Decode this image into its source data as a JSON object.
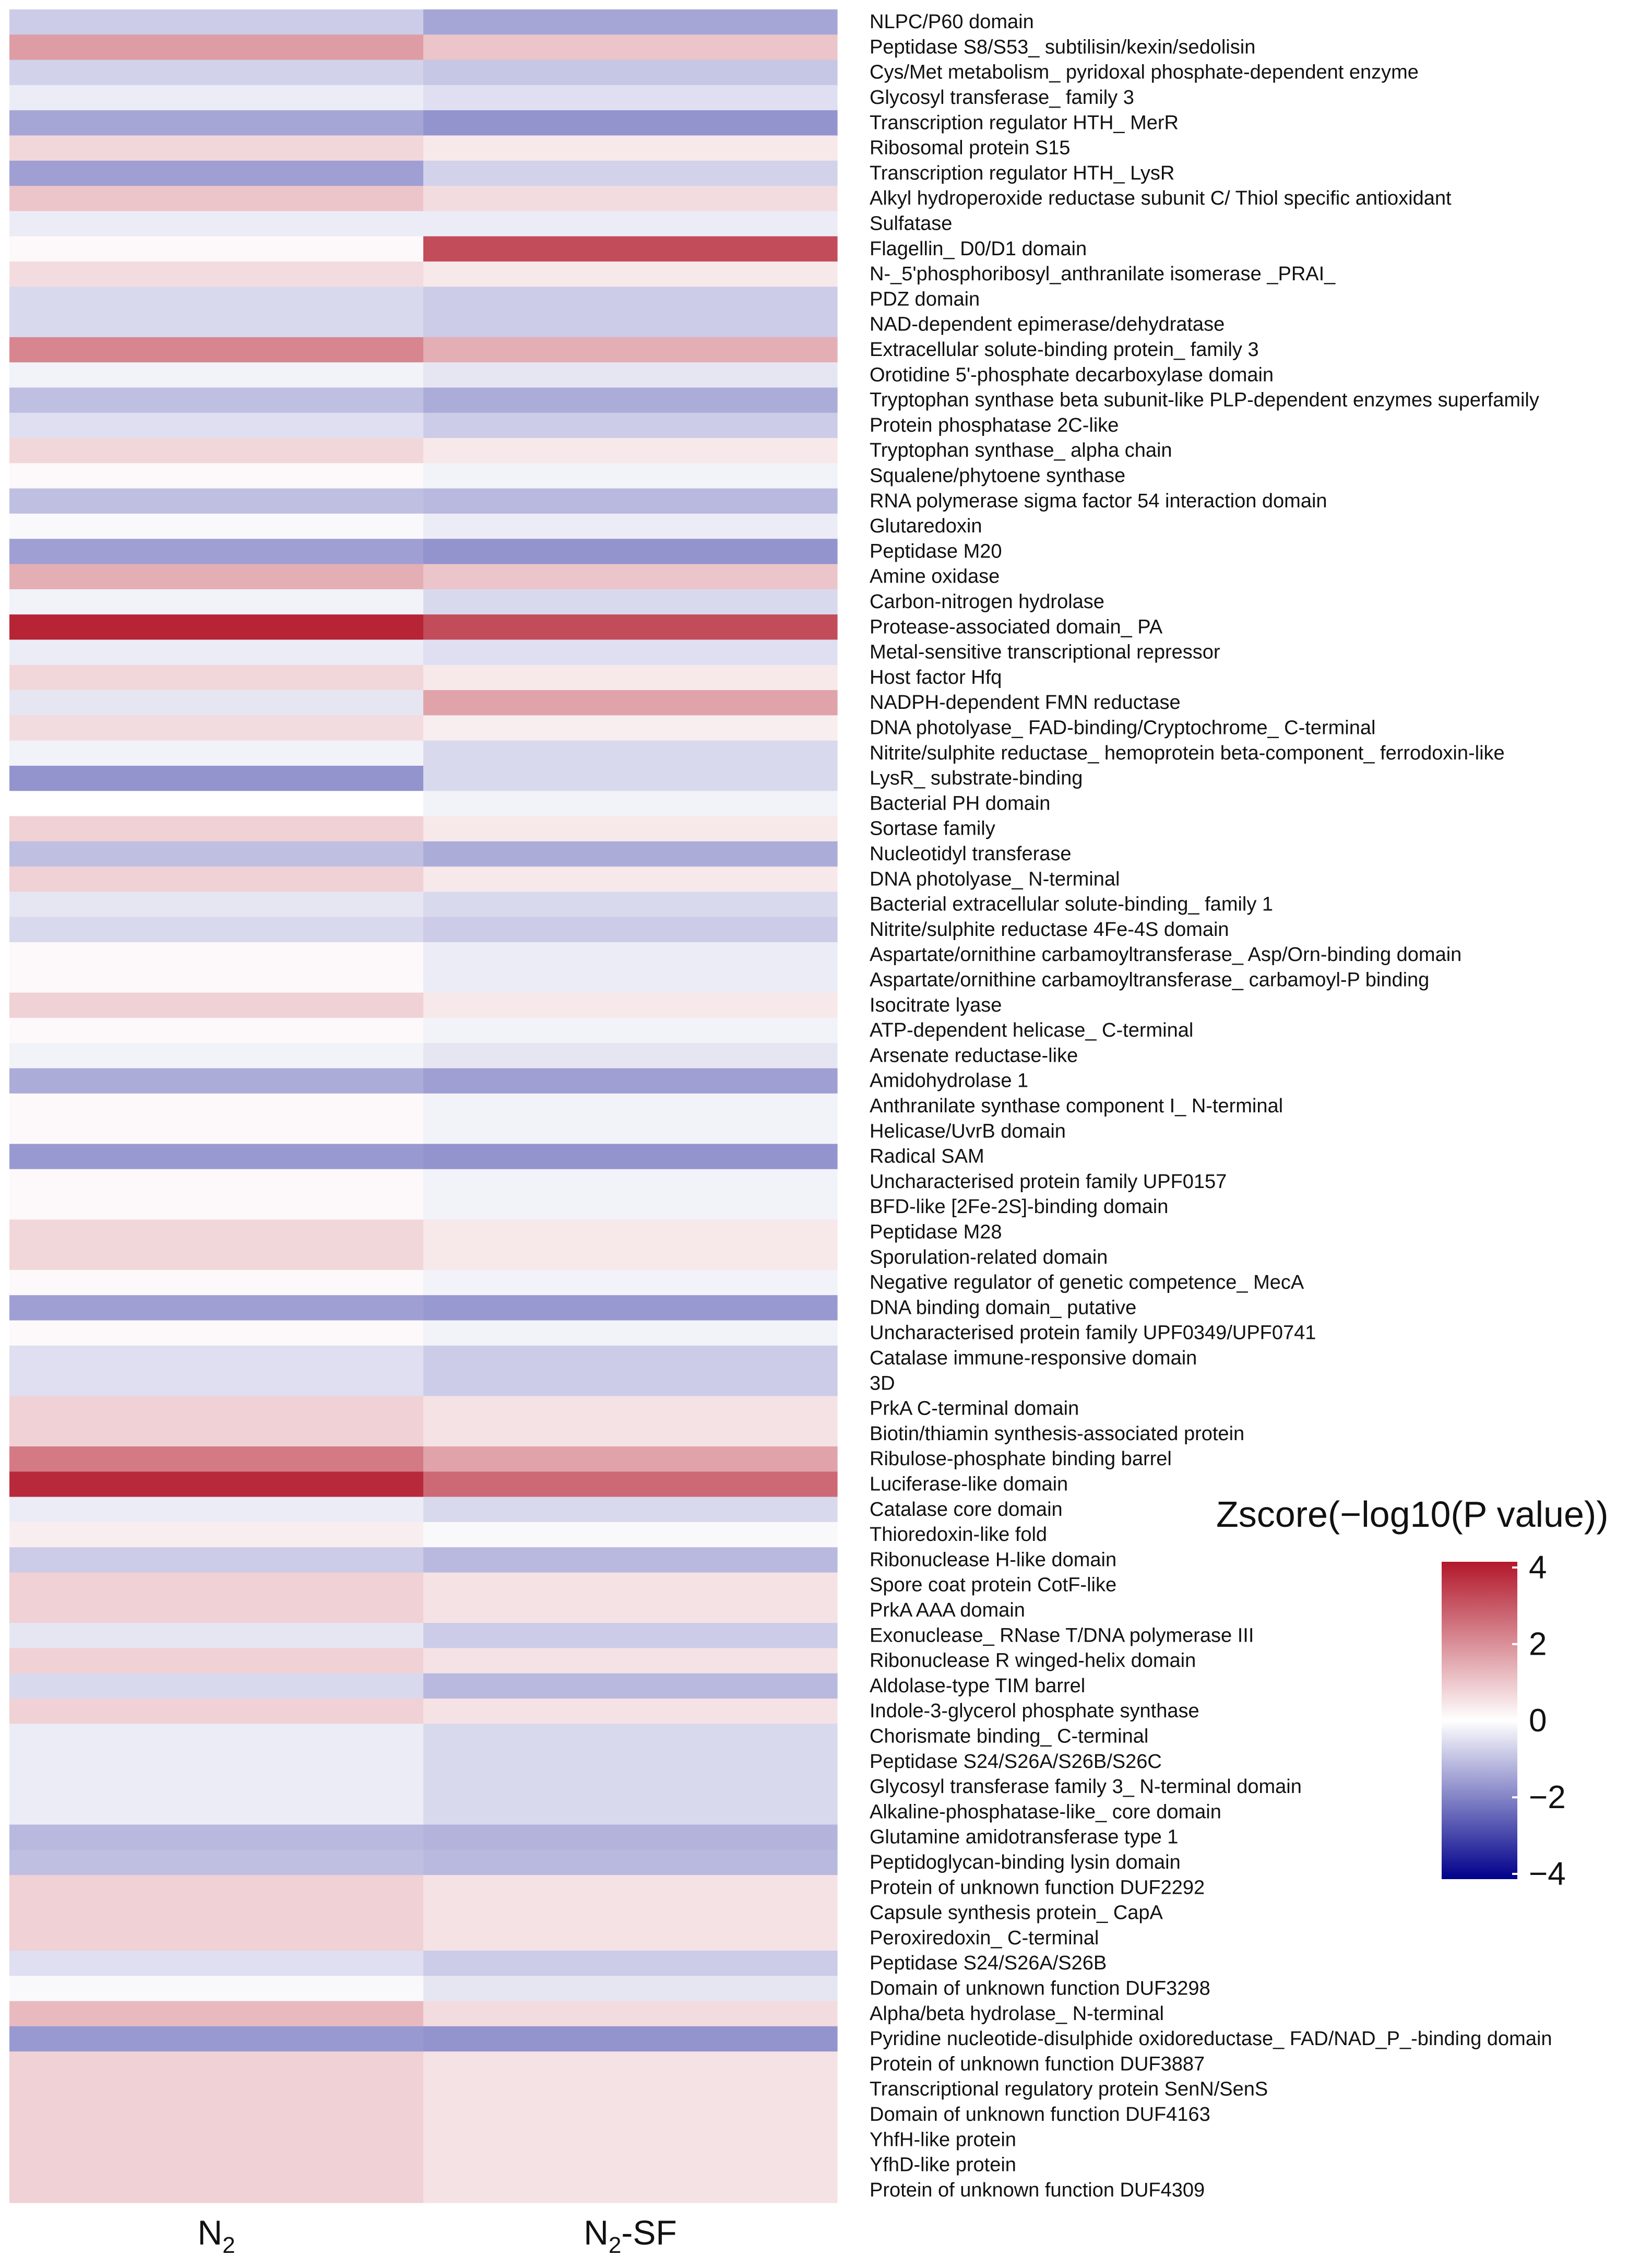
{
  "chart_data": {
    "type": "heatmap",
    "title": "",
    "columns": [
      {
        "label": "N",
        "subscript": "2",
        "suffix": ""
      },
      {
        "label": "N",
        "subscript": "2",
        "suffix": "-SF"
      }
    ],
    "rows": [
      "NLPC/P60 domain",
      "Peptidase S8/S53_ subtilisin/kexin/sedolisin",
      "Cys/Met metabolism_ pyridoxal phosphate-dependent enzyme",
      "Glycosyl transferase_ family 3",
      "Transcription regulator HTH_ MerR",
      "Ribosomal protein S15",
      "Transcription regulator HTH_ LysR",
      "Alkyl hydroperoxide reductase subunit C/ Thiol specific antioxidant",
      "Sulfatase",
      "Flagellin_ D0/D1 domain",
      "N-_5'phosphoribosyl_anthranilate isomerase _PRAI_",
      "PDZ domain",
      "NAD-dependent epimerase/dehydratase",
      "Extracellular solute-binding protein_ family 3",
      "Orotidine 5'-phosphate decarboxylase domain",
      "Tryptophan synthase beta subunit-like PLP-dependent enzymes superfamily",
      "Protein phosphatase 2C-like",
      "Tryptophan synthase_ alpha chain",
      "Squalene/phytoene synthase",
      "RNA polymerase sigma factor 54 interaction domain",
      "Glutaredoxin",
      "Peptidase M20",
      "Amine oxidase",
      "Carbon-nitrogen hydrolase",
      "Protease-associated domain_ PA",
      "Metal-sensitive transcriptional repressor",
      "Host factor Hfq",
      "NADPH-dependent FMN reductase",
      "DNA photolyase_ FAD-binding/Cryptochrome_ C-terminal",
      "Nitrite/sulphite reductase_ hemoprotein beta-component_ ferrodoxin-like",
      "LysR_ substrate-binding",
      "Bacterial PH domain",
      "Sortase family",
      "Nucleotidyl transferase",
      "DNA photolyase_ N-terminal",
      "Bacterial extracellular solute-binding_ family 1",
      "Nitrite/sulphite reductase 4Fe-4S domain",
      "Aspartate/ornithine carbamoyltransferase_ Asp/Orn-binding domain",
      "Aspartate/ornithine carbamoyltransferase_ carbamoyl-P binding",
      "Isocitrate lyase",
      "ATP-dependent helicase_ C-terminal",
      "Arsenate reductase-like",
      "Amidohydrolase 1",
      "Anthranilate synthase component I_ N-terminal",
      "Helicase/UvrB domain",
      "Radical SAM",
      "Uncharacterised protein family UPF0157",
      "BFD-like [2Fe-2S]-binding domain",
      "Peptidase M28",
      "Sporulation-related domain",
      "Negative regulator of genetic competence_ MecA",
      "DNA binding domain_ putative",
      "Uncharacterised protein family UPF0349/UPF0741",
      "Catalase immune-responsive domain",
      "3D",
      "PrkA C-terminal domain",
      "Biotin/thiamin synthesis-associated protein",
      "Ribulose-phosphate binding barrel",
      "Luciferase-like domain",
      "Catalase core domain",
      "Thioredoxin-like fold",
      "Ribonuclease H-like domain",
      "Spore coat protein CotF-like",
      "PrkA AAA domain",
      "Exonuclease_ RNase T/DNA polymerase III",
      "Ribonuclease R winged-helix domain",
      "Aldolase-type TIM barrel",
      "Indole-3-glycerol phosphate synthase",
      "Chorismate binding_ C-terminal",
      "Peptidase S24/S26A/S26B/S26C",
      "Glycosyl transferase family 3_ N-terminal domain",
      "Alkaline-phosphatase-like_ core domain",
      "Glutamine amidotransferase type 1",
      "Peptidoglycan-binding lysin domain",
      "Protein of unknown function DUF2292",
      "Capsule synthesis protein_ CapA",
      "Peroxiredoxin_ C-terminal",
      "Peptidase S24/S26A/S26B",
      "Domain of unknown function DUF3298",
      "Alpha/beta hydrolase_ N-terminal",
      "Pyridine nucleotide-disulphide oxidoreductase_ FAD/NAD_P_-binding domain",
      "Protein of unknown function DUF3887",
      "Transcriptional regulatory protein SenN/SenS",
      "Domain of unknown function DUF4163",
      "YhfH-like protein",
      "YfhD-like protein",
      "Protein of unknown function DUF4309"
    ],
    "values": [
      [
        -0.8,
        -1.4
      ],
      [
        1.7,
        1.0
      ],
      [
        -0.7,
        -0.9
      ],
      [
        -0.3,
        -0.5
      ],
      [
        -1.4,
        -1.7
      ],
      [
        0.7,
        0.4
      ],
      [
        -1.5,
        -0.7
      ],
      [
        1.0,
        0.6
      ],
      [
        -0.3,
        -0.3
      ],
      [
        0.1,
        3.1
      ],
      [
        0.6,
        0.4
      ],
      [
        -0.6,
        -0.8
      ],
      [
        -0.6,
        -0.8
      ],
      [
        2.1,
        1.4
      ],
      [
        -0.2,
        -0.4
      ],
      [
        -1.0,
        -1.3
      ],
      [
        -0.5,
        -0.8
      ],
      [
        0.7,
        0.4
      ],
      [
        0.1,
        -0.2
      ],
      [
        -1.0,
        -1.1
      ],
      [
        -0.1,
        -0.3
      ],
      [
        -1.5,
        -1.7
      ],
      [
        1.4,
        1.0
      ],
      [
        -0.2,
        -0.6
      ],
      [
        3.8,
        3.1
      ],
      [
        -0.3,
        -0.5
      ],
      [
        0.7,
        0.4
      ],
      [
        -0.4,
        1.6
      ],
      [
        0.6,
        0.3
      ],
      [
        -0.2,
        -0.6
      ],
      [
        -1.7,
        -0.6
      ],
      [
        0.0,
        -0.2
      ],
      [
        0.8,
        0.4
      ],
      [
        -1.0,
        -1.3
      ],
      [
        0.8,
        0.4
      ],
      [
        -0.4,
        -0.6
      ],
      [
        -0.6,
        -0.8
      ],
      [
        0.1,
        -0.3
      ],
      [
        0.1,
        -0.3
      ],
      [
        0.8,
        0.4
      ],
      [
        0.1,
        -0.2
      ],
      [
        -0.2,
        -0.4
      ],
      [
        -1.3,
        -1.5
      ],
      [
        0.1,
        -0.2
      ],
      [
        0.1,
        -0.2
      ],
      [
        -1.6,
        -1.7
      ],
      [
        0.1,
        -0.2
      ],
      [
        0.1,
        -0.2
      ],
      [
        0.7,
        0.4
      ],
      [
        0.7,
        0.4
      ],
      [
        0.1,
        -0.2
      ],
      [
        -1.5,
        -1.6
      ],
      [
        0.1,
        -0.2
      ],
      [
        -0.5,
        -0.8
      ],
      [
        -0.5,
        -0.8
      ],
      [
        0.8,
        0.5
      ],
      [
        0.8,
        0.5
      ],
      [
        2.3,
        1.6
      ],
      [
        3.7,
        2.6
      ],
      [
        -0.3,
        -0.6
      ],
      [
        0.3,
        -0.1
      ],
      [
        -0.8,
        -1.1
      ],
      [
        0.8,
        0.5
      ],
      [
        0.8,
        0.5
      ],
      [
        -0.4,
        -0.8
      ],
      [
        0.8,
        0.5
      ],
      [
        -0.6,
        -1.1
      ],
      [
        0.8,
        0.5
      ],
      [
        -0.3,
        -0.6
      ],
      [
        -0.3,
        -0.6
      ],
      [
        -0.3,
        -0.6
      ],
      [
        -0.3,
        -0.6
      ],
      [
        -1.1,
        -1.2
      ],
      [
        -1.0,
        -1.1
      ],
      [
        0.8,
        0.5
      ],
      [
        0.8,
        0.5
      ],
      [
        0.8,
        0.5
      ],
      [
        -0.5,
        -0.8
      ],
      [
        -0.1,
        -0.4
      ],
      [
        1.2,
        0.6
      ],
      [
        -1.6,
        -1.7
      ],
      [
        0.8,
        0.5
      ],
      [
        0.8,
        0.5
      ],
      [
        0.8,
        0.5
      ],
      [
        0.8,
        0.5
      ],
      [
        0.8,
        0.5
      ],
      [
        0.8,
        0.5
      ]
    ],
    "legend": {
      "title": "Zscore(−log10(P value))",
      "range": [
        -4,
        4
      ],
      "ticks": [
        4,
        2,
        0,
        -2,
        -4
      ],
      "tick_labels": [
        "4",
        "2",
        "0",
        "−2",
        "−4"
      ],
      "colors": {
        "low": "#00008B",
        "mid": "#FFFFFF",
        "high": "#B2182B"
      },
      "placement": "right"
    }
  }
}
